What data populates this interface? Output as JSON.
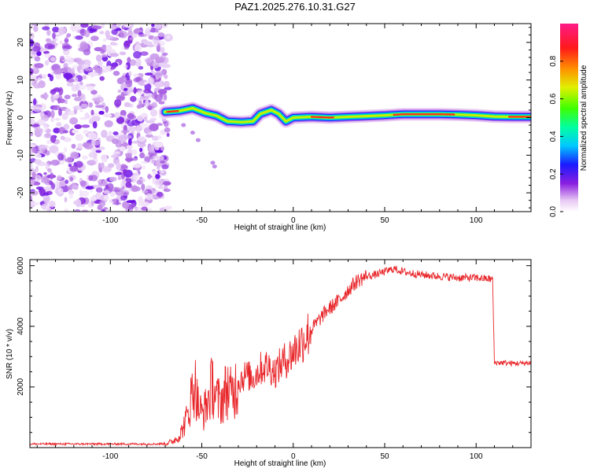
{
  "title": "PAZ1.2025.276.10.31.G27",
  "chart_data": [
    {
      "type": "heatmap",
      "name": "spectrogram",
      "xlabel": "Height of straight line (km)",
      "ylabel": "Frequency (Hz)",
      "xlim": [
        -144,
        130
      ],
      "ylim": [
        -25,
        25
      ],
      "xticks": [
        -100,
        -50,
        0,
        50,
        100
      ],
      "yticks": [
        -20,
        -10,
        0,
        10,
        20
      ],
      "noise_region_end_km": -70,
      "ridge": {
        "start_km": -70,
        "end_km": 130,
        "frequency_hz": [
          [
            -70,
            1.5
          ],
          [
            -62,
            1.8
          ],
          [
            -55,
            2.5
          ],
          [
            -48,
            1.2
          ],
          [
            -42,
            0.5
          ],
          [
            -36,
            -1.0
          ],
          [
            -28,
            -1.2
          ],
          [
            -22,
            -1.0
          ],
          [
            -18,
            1.0
          ],
          [
            -12,
            2.0
          ],
          [
            -8,
            1.0
          ],
          [
            -4,
            -1.0
          ],
          [
            0,
            0.0
          ],
          [
            10,
            0.2
          ],
          [
            20,
            0.0
          ],
          [
            30,
            0.2
          ],
          [
            40,
            0.4
          ],
          [
            50,
            0.6
          ],
          [
            60,
            0.9
          ],
          [
            70,
            0.9
          ],
          [
            80,
            0.9
          ],
          [
            90,
            0.8
          ],
          [
            100,
            0.6
          ],
          [
            110,
            0.3
          ],
          [
            120,
            0.2
          ],
          [
            130,
            0.2
          ]
        ]
      },
      "colorbar": {
        "label": "Normalized spectral amplitude",
        "range": [
          0,
          1
        ],
        "ticks": [
          "0.0",
          "0.2",
          "0.4",
          "0.6",
          "0.8"
        ]
      }
    },
    {
      "type": "line",
      "name": "snr",
      "xlabel": "Height of straight line (km)",
      "ylabel": "SNR (10 * v/v)",
      "xlim": [
        -144,
        130
      ],
      "ylim": [
        0,
        6200
      ],
      "xticks": [
        -100,
        -50,
        0,
        50,
        100
      ],
      "yticks": [
        2000,
        4000,
        6000
      ],
      "series": [
        {
          "name": "SNR",
          "color": "#e8262a",
          "points": [
            [
              -144,
              120
            ],
            [
              -100,
              120
            ],
            [
              -75,
              120
            ],
            [
              -70,
              130
            ],
            [
              -66,
              200
            ],
            [
              -62,
              400
            ],
            [
              -60,
              700
            ],
            [
              -58,
              1000
            ],
            [
              -56,
              1600
            ],
            [
              -54,
              2200
            ],
            [
              -52,
              1400
            ],
            [
              -50,
              1100
            ],
            [
              -48,
              1300
            ],
            [
              -46,
              1700
            ],
            [
              -44,
              2100
            ],
            [
              -42,
              1600
            ],
            [
              -40,
              1500
            ],
            [
              -38,
              1700
            ],
            [
              -36,
              2000
            ],
            [
              -34,
              1700
            ],
            [
              -30,
              2200
            ],
            [
              -26,
              2400
            ],
            [
              -22,
              2300
            ],
            [
              -18,
              2600
            ],
            [
              -14,
              2700
            ],
            [
              -10,
              2500
            ],
            [
              -6,
              2800
            ],
            [
              -2,
              3000
            ],
            [
              2,
              3300
            ],
            [
              6,
              3600
            ],
            [
              10,
              3900
            ],
            [
              14,
              4200
            ],
            [
              18,
              4500
            ],
            [
              22,
              4700
            ],
            [
              26,
              4900
            ],
            [
              30,
              5200
            ],
            [
              35,
              5500
            ],
            [
              40,
              5650
            ],
            [
              45,
              5700
            ],
            [
              50,
              5800
            ],
            [
              55,
              5900
            ],
            [
              60,
              5800
            ],
            [
              70,
              5700
            ],
            [
              80,
              5650
            ],
            [
              90,
              5600
            ],
            [
              100,
              5600
            ],
            [
              109,
              5550
            ],
            [
              110,
              2800
            ],
            [
              115,
              2800
            ],
            [
              120,
              2780
            ],
            [
              125,
              2780
            ],
            [
              130,
              2800
            ]
          ]
        }
      ]
    }
  ]
}
